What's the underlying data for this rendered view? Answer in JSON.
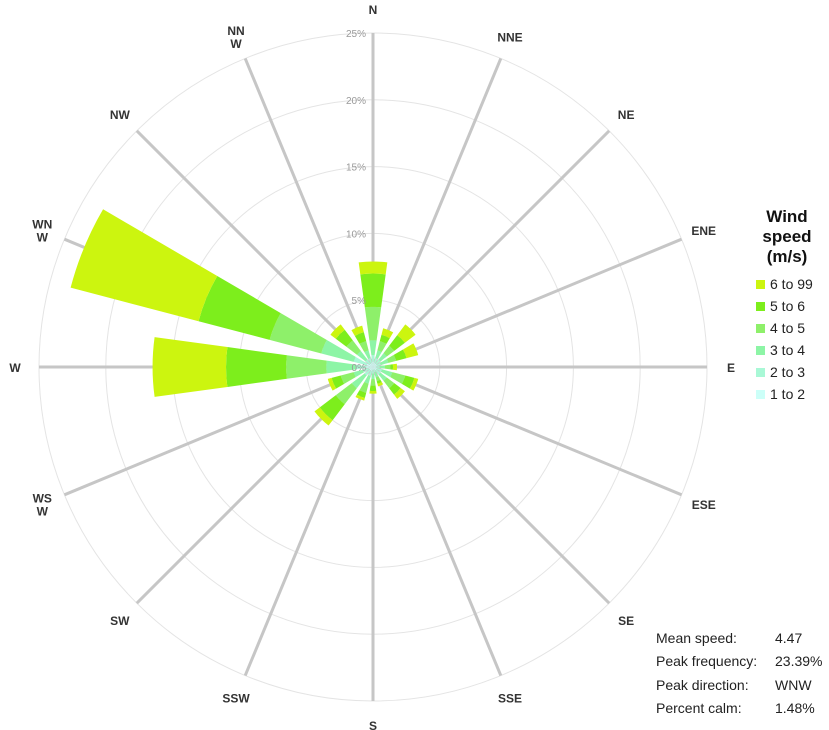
{
  "chart_data": {
    "type": "wind-rose",
    "radial_ticks": [
      "0%",
      "5%",
      "10%",
      "15%",
      "20%",
      "25%"
    ],
    "radial_max": 25,
    "directions": [
      "N",
      "NNE",
      "NE",
      "ENE",
      "E",
      "ESE",
      "SE",
      "SSE",
      "S",
      "SSW",
      "SW",
      "WSW",
      "W",
      "WNW",
      "NW",
      "NNW"
    ],
    "direction_labels": [
      [
        "N"
      ],
      [
        "NNE"
      ],
      [
        "NE"
      ],
      [
        "ENE"
      ],
      [
        "E"
      ],
      [
        "ESE"
      ],
      [
        "SE"
      ],
      [
        "SSE"
      ],
      [
        "S"
      ],
      [
        "SSW"
      ],
      [
        "SW"
      ],
      [
        "WS",
        "W"
      ],
      [
        "W"
      ],
      [
        "WN",
        "W"
      ],
      [
        "NW"
      ],
      [
        "NN",
        "W"
      ]
    ],
    "bins": [
      "1 to 2",
      "2 to 3",
      "3 to 4",
      "4 to 5",
      "5 to 6",
      "6 to 99"
    ],
    "cumulative": [
      [
        0.4,
        0.9,
        2.0,
        4.5,
        7.0,
        7.9
      ],
      [
        0.3,
        0.7,
        1.3,
        2.0,
        2.5,
        3.0
      ],
      [
        0.3,
        0.7,
        1.3,
        2.0,
        3.0,
        4.0
      ],
      [
        0.3,
        0.6,
        1.2,
        1.8,
        2.6,
        3.5
      ],
      [
        0.2,
        0.5,
        0.9,
        1.3,
        1.5,
        1.8
      ],
      [
        0.3,
        0.7,
        1.5,
        2.5,
        3.2,
        3.5
      ],
      [
        0.3,
        0.7,
        1.3,
        2.0,
        2.6,
        3.0
      ],
      [
        0.2,
        0.4,
        0.8,
        1.1,
        1.3,
        1.5
      ],
      [
        0.2,
        0.5,
        0.9,
        1.4,
        1.8,
        2.0
      ],
      [
        0.3,
        0.7,
        1.3,
        2.0,
        2.4,
        2.6
      ],
      [
        0.3,
        0.8,
        2.0,
        3.5,
        5.0,
        5.5
      ],
      [
        0.3,
        0.8,
        1.5,
        2.5,
        3.2,
        3.5
      ],
      [
        0.5,
        1.3,
        3.5,
        6.5,
        11.0,
        16.5
      ],
      [
        0.5,
        1.5,
        4.0,
        8.0,
        13.5,
        23.4
      ],
      [
        0.3,
        0.7,
        1.5,
        2.5,
        3.5,
        4.0
      ],
      [
        0.3,
        0.7,
        1.3,
        2.0,
        2.7,
        3.2
      ]
    ],
    "colors": [
      "#ccfff8",
      "#a9f8d6",
      "#8df5a6",
      "#8ef06a",
      "#7dee1c",
      "#ccf50f"
    ],
    "grid_color": "#e4e4e4",
    "spoke_color": "#c6c6c6"
  },
  "legend": {
    "title_lines": [
      "Wind",
      "speed",
      "(m/s)"
    ],
    "items": [
      {
        "label": "6 to 99",
        "color": "#ccf50f"
      },
      {
        "label": "5 to 6",
        "color": "#7dee1c"
      },
      {
        "label": "4 to 5",
        "color": "#8ef06a"
      },
      {
        "label": "3 to 4",
        "color": "#8df5a6"
      },
      {
        "label": "2 to 3",
        "color": "#a9f8d6"
      },
      {
        "label": "1 to 2",
        "color": "#ccfff8"
      }
    ]
  },
  "stats": [
    {
      "label": "Mean speed:",
      "value": "4.47"
    },
    {
      "label": "Peak frequency:",
      "value": "23.39%"
    },
    {
      "label": "Peak direction:",
      "value": "WNW"
    },
    {
      "label": "Percent calm:",
      "value": "1.48%"
    }
  ]
}
